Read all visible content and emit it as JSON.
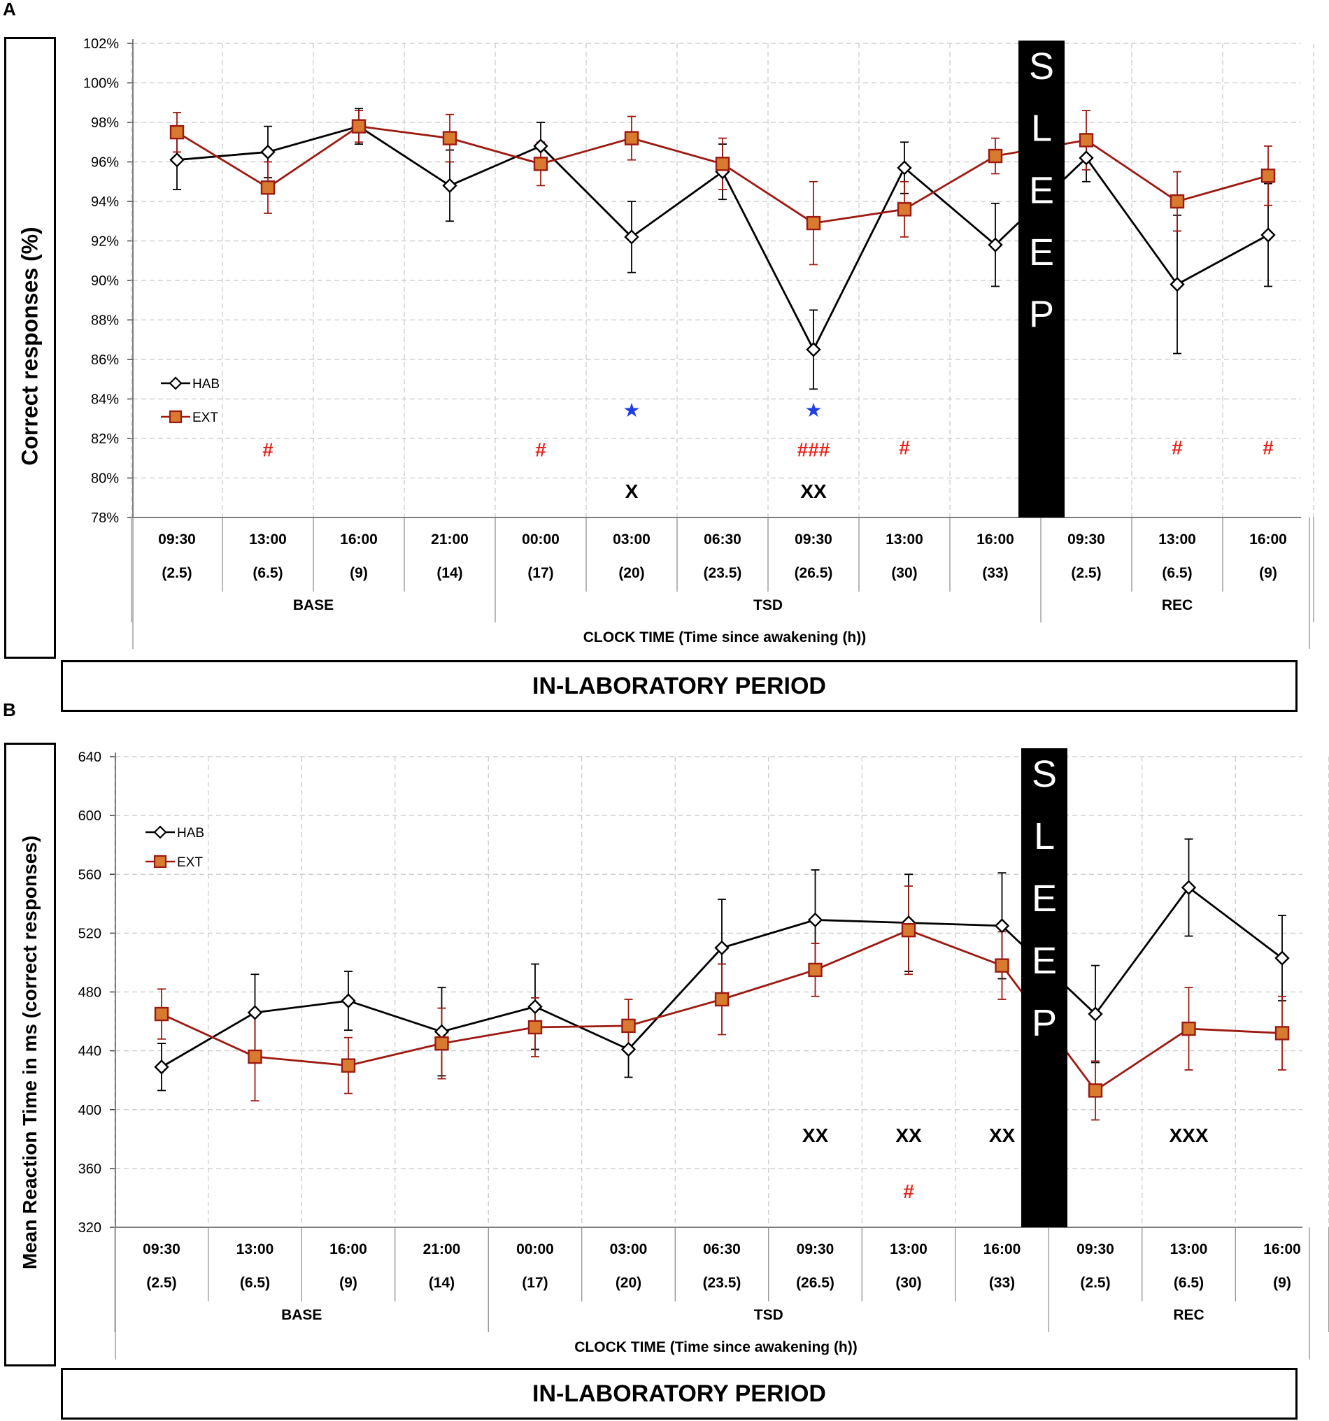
{
  "colors": {
    "hab": "#000000",
    "ext": "#9c1a12",
    "ext_fill": "#d97b2e",
    "hash": "#e8231c",
    "star": "#1f3fe0",
    "grid": "#c8c8c8"
  },
  "x_axis": {
    "times": [
      "09:30",
      "13:00",
      "16:00",
      "21:00",
      "00:00",
      "03:00",
      "06:30",
      "09:30",
      "13:00",
      "16:00",
      "09:30",
      "13:00",
      "16:00"
    ],
    "hours": [
      "(2.5)",
      "(6.5)",
      "(9)",
      "(14)",
      "(17)",
      "(20)",
      "(23.5)",
      "(26.5)",
      "(30)",
      "(33)",
      "(2.5)",
      "(6.5)",
      "(9)"
    ],
    "groups": [
      {
        "label": "BASE",
        "start": 0,
        "end": 3
      },
      {
        "label": "TSD",
        "start": 4,
        "end": 9
      },
      {
        "label": "REC",
        "start": 10,
        "end": 12
      }
    ],
    "title": "CLOCK TIME  (Time since awakening (h))"
  },
  "period_label": "IN-LABORATORY PERIOD",
  "sleep_label": "SLEEP",
  "chart_data": [
    {
      "panel": "A",
      "type": "line",
      "ylabel": "Correct responses (%)",
      "ylim": [
        78,
        102
      ],
      "yticks": [
        78,
        80,
        82,
        84,
        86,
        88,
        90,
        92,
        94,
        96,
        98,
        100,
        102
      ],
      "ytick_suffix": "%",
      "grid": true,
      "legend_position": "left",
      "series": [
        {
          "name": "HAB",
          "values": [
            96.1,
            96.5,
            97.8,
            94.8,
            96.8,
            92.2,
            95.5,
            86.5,
            95.7,
            91.8,
            96.2,
            89.8,
            92.3
          ],
          "err": [
            1.5,
            1.3,
            0.9,
            1.8,
            1.2,
            1.8,
            1.4,
            2.0,
            1.3,
            2.1,
            1.2,
            3.5,
            2.6
          ]
        },
        {
          "name": "EXT",
          "values": [
            97.5,
            94.7,
            97.8,
            97.2,
            95.9,
            97.2,
            95.9,
            92.9,
            93.6,
            96.3,
            97.1,
            94.0,
            95.3
          ],
          "err": [
            1.0,
            1.3,
            0.8,
            1.2,
            1.1,
            1.1,
            1.3,
            2.1,
            1.4,
            0.9,
            1.5,
            1.5,
            1.5
          ]
        }
      ],
      "sleep_after_index": 9,
      "annotations": [
        {
          "text": "#",
          "index": 1,
          "y": 81.1,
          "kind": "hash"
        },
        {
          "text": "#",
          "index": 4,
          "y": 81.1,
          "kind": "hash"
        },
        {
          "text": "★",
          "index": 5,
          "y": 83.1,
          "kind": "star"
        },
        {
          "text": "★",
          "index": 7,
          "y": 83.1,
          "kind": "star"
        },
        {
          "text": "###",
          "index": 7,
          "y": 81.1,
          "kind": "hash"
        },
        {
          "text": "#",
          "index": 8,
          "y": 81.2,
          "kind": "hash"
        },
        {
          "text": "#",
          "index": 11,
          "y": 81.2,
          "kind": "hash"
        },
        {
          "text": "#",
          "index": 12,
          "y": 81.2,
          "kind": "hash"
        },
        {
          "text": "X",
          "index": 5,
          "y": 79.0,
          "kind": "x"
        },
        {
          "text": "XX",
          "index": 7,
          "y": 79.0,
          "kind": "x"
        }
      ]
    },
    {
      "panel": "B",
      "type": "line",
      "ylabel": "Mean Reaction Time in ms (correct responses)",
      "ylim": [
        320,
        640
      ],
      "yticks": [
        320,
        360,
        400,
        440,
        480,
        520,
        560,
        600,
        640
      ],
      "ytick_suffix": "",
      "grid": true,
      "legend_position": "top-left",
      "series": [
        {
          "name": "HAB",
          "values": [
            429,
            466,
            474,
            453,
            470,
            441,
            510,
            529,
            527,
            525,
            465,
            551,
            503
          ],
          "err": [
            16,
            26,
            20,
            30,
            29,
            19,
            33,
            34,
            33,
            36,
            33,
            33,
            29
          ]
        },
        {
          "name": "EXT",
          "values": [
            465,
            436,
            430,
            445,
            456,
            457,
            475,
            495,
            522,
            498,
            413,
            455,
            452
          ],
          "err": [
            17,
            30,
            19,
            24,
            20,
            18,
            24,
            18,
            30,
            23,
            20,
            28,
            25
          ]
        }
      ],
      "sleep_after_index": 9,
      "annotations": [
        {
          "text": "XX",
          "index": 7,
          "y": 378,
          "kind": "x"
        },
        {
          "text": "XX",
          "index": 8,
          "y": 378,
          "kind": "x"
        },
        {
          "text": "XX",
          "index": 9,
          "y": 378,
          "kind": "x"
        },
        {
          "text": "XXX",
          "index": 11,
          "y": 378,
          "kind": "x"
        },
        {
          "text": "#",
          "index": 8,
          "y": 340,
          "kind": "hash"
        }
      ]
    }
  ]
}
